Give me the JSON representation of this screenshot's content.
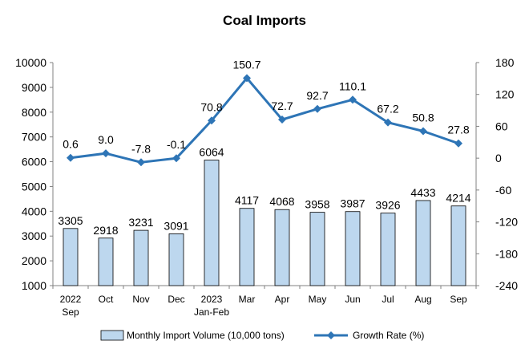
{
  "chart_data": {
    "type": "bar",
    "title": "Coal Imports",
    "categories": [
      [
        "2022",
        "Sep"
      ],
      [
        "Oct"
      ],
      [
        "Nov"
      ],
      [
        "Dec"
      ],
      [
        "2023",
        "Jan-Feb"
      ],
      [
        "Mar"
      ],
      [
        "Apr"
      ],
      [
        "May"
      ],
      [
        "Jun"
      ],
      [
        "Jul"
      ],
      [
        "Aug"
      ],
      [
        "Sep"
      ]
    ],
    "series": [
      {
        "name": "Monthly Import Volume (10,000 tons)",
        "type": "bar",
        "axis": "left",
        "values": [
          3305,
          2918,
          3231,
          3091,
          6064,
          4117,
          4068,
          3958,
          3987,
          3926,
          4433,
          4214
        ],
        "labels": [
          "3305",
          "2918",
          "3231",
          "3091",
          "6064",
          "4117",
          "4068",
          "3958",
          "3987",
          "3926",
          "4433",
          "4214"
        ]
      },
      {
        "name": "Growth Rate (%)",
        "type": "line",
        "axis": "right",
        "values": [
          0.6,
          9.0,
          -7.8,
          -0.1,
          70.8,
          150.7,
          72.7,
          92.7,
          110.1,
          67.2,
          50.8,
          27.8
        ],
        "labels": [
          "0.6",
          "9.0",
          "-7.8",
          "-0.1",
          "70.8",
          "150.7",
          "72.7",
          "92.7",
          "110.1",
          "67.2",
          "50.8",
          "27.8"
        ]
      }
    ],
    "y_left": {
      "range": [
        1000,
        10000
      ],
      "ticks": [
        "1000",
        "2000",
        "3000",
        "4000",
        "5000",
        "6000",
        "7000",
        "8000",
        "9000",
        "10000"
      ]
    },
    "y_right": {
      "range": [
        -240,
        180
      ],
      "ticks": [
        "-240",
        "-180",
        "-120",
        "-60",
        "0",
        "60",
        "120",
        "180"
      ]
    },
    "grid": false,
    "legend_position": "bottom",
    "colors": {
      "bar_fill": "#bdd7ee",
      "bar_stroke": "#000000",
      "line": "#2e75b6",
      "axis": "#808080"
    }
  }
}
